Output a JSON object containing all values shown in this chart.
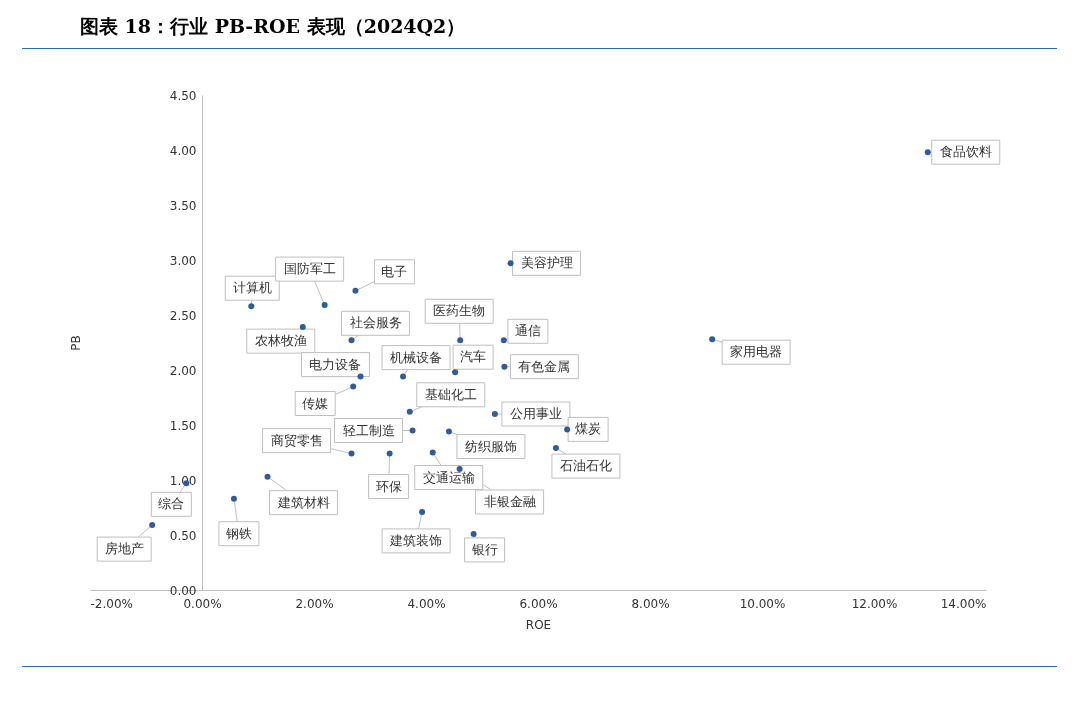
{
  "chart_data": {
    "type": "scatter",
    "title": "图表 18：行业 PB-ROE 表现（2024Q2）",
    "xlabel": "ROE",
    "ylabel": "PB",
    "x": [
      12.96,
      9.11,
      5.51,
      0.88,
      2.19,
      2.74,
      1.8,
      2.67,
      4.61,
      5.39,
      2.83,
      3.59,
      4.52,
      5.4,
      2.7,
      3.71,
      5.23,
      6.52,
      3.76,
      4.41,
      6.32,
      2.67,
      3.35,
      4.12,
      4.6,
      1.17,
      0.57,
      3.93,
      4.85,
      -0.28,
      -0.89
    ],
    "series": [
      {
        "color": "#2e5c9e",
        "values": [
          3.98,
          2.28,
          2.97,
          2.58,
          2.59,
          2.72,
          2.39,
          2.27,
          2.27,
          2.27,
          1.94,
          1.94,
          1.98,
          2.03,
          1.85,
          1.62,
          1.6,
          1.46,
          1.45,
          1.44,
          1.29,
          1.24,
          1.24,
          1.25,
          1.1,
          1.03,
          0.83,
          0.71,
          0.51,
          0.97,
          0.59
        ]
      }
    ],
    "annotations": [
      {
        "text": "食品饮料",
        "x": 12.96,
        "y": 3.98
      },
      {
        "text": "家用电器",
        "x": 9.11,
        "y": 2.28
      },
      {
        "text": "美容护理",
        "x": 5.51,
        "y": 2.97
      },
      {
        "text": "计算机",
        "x": 0.88,
        "y": 2.58
      },
      {
        "text": "国防军工",
        "x": 2.19,
        "y": 2.59
      },
      {
        "text": "电子",
        "x": 2.74,
        "y": 2.72
      },
      {
        "text": "农林牧渔",
        "x": 1.8,
        "y": 2.39
      },
      {
        "text": "社会服务",
        "x": 2.67,
        "y": 2.27
      },
      {
        "text": "医药生物",
        "x": 4.61,
        "y": 2.27
      },
      {
        "text": "通信",
        "x": 5.39,
        "y": 2.27
      },
      {
        "text": "电力设备",
        "x": 2.83,
        "y": 1.94
      },
      {
        "text": "机械设备",
        "x": 3.59,
        "y": 1.94
      },
      {
        "text": "汽车",
        "x": 4.52,
        "y": 1.98
      },
      {
        "text": "有色金属",
        "x": 5.4,
        "y": 2.03
      },
      {
        "text": "传媒",
        "x": 2.7,
        "y": 1.85
      },
      {
        "text": "基础化工",
        "x": 3.71,
        "y": 1.62
      },
      {
        "text": "公用事业",
        "x": 5.23,
        "y": 1.6
      },
      {
        "text": "煤炭",
        "x": 6.52,
        "y": 1.46
      },
      {
        "text": "轻工制造",
        "x": 3.76,
        "y": 1.45
      },
      {
        "text": "纺织服饰",
        "x": 4.41,
        "y": 1.44
      },
      {
        "text": "石油石化",
        "x": 6.32,
        "y": 1.29
      },
      {
        "text": "商贸零售",
        "x": 2.67,
        "y": 1.24
      },
      {
        "text": "环保",
        "x": 3.35,
        "y": 1.24
      },
      {
        "text": "交通运输",
        "x": 4.12,
        "y": 1.25
      },
      {
        "text": "非银金融",
        "x": 4.6,
        "y": 1.1
      },
      {
        "text": "建筑材料",
        "x": 1.17,
        "y": 1.03
      },
      {
        "text": "钢铁",
        "x": 0.57,
        "y": 0.83
      },
      {
        "text": "建筑装饰",
        "x": 3.93,
        "y": 0.71
      },
      {
        "text": "银行",
        "x": 4.85,
        "y": 0.51
      },
      {
        "text": "综合",
        "x": -0.28,
        "y": 0.97
      },
      {
        "text": "房地产",
        "x": -0.89,
        "y": 0.59
      }
    ],
    "xlim": [
      -2,
      14
    ],
    "xticks": [
      {
        "value": -2,
        "label": "-2.00%"
      },
      {
        "value": 0,
        "label": "0.00%"
      },
      {
        "value": 2,
        "label": "2.00%"
      },
      {
        "value": 4,
        "label": "4.00%"
      },
      {
        "value": 6,
        "label": "6.00%"
      },
      {
        "value": 8,
        "label": "8.00%"
      },
      {
        "value": 10,
        "label": "10.00%"
      },
      {
        "value": 12,
        "label": "12.00%"
      },
      {
        "value": 14,
        "label": "14.00%"
      }
    ],
    "ylim": [
      0,
      4.5
    ],
    "yticks": [
      {
        "value": 0,
        "label": "0.00"
      },
      {
        "value": 0.5,
        "label": "0.50"
      },
      {
        "value": 1,
        "label": "1.00"
      },
      {
        "value": 1.5,
        "label": "1.50"
      },
      {
        "value": 2,
        "label": "2.00"
      },
      {
        "value": 2.5,
        "label": "2.50"
      },
      {
        "value": 3,
        "label": "3.00"
      },
      {
        "value": 3.5,
        "label": "3.50"
      },
      {
        "value": 4,
        "label": "4.00"
      },
      {
        "value": 4.5,
        "label": "4.50"
      }
    ],
    "marker": "circle"
  }
}
